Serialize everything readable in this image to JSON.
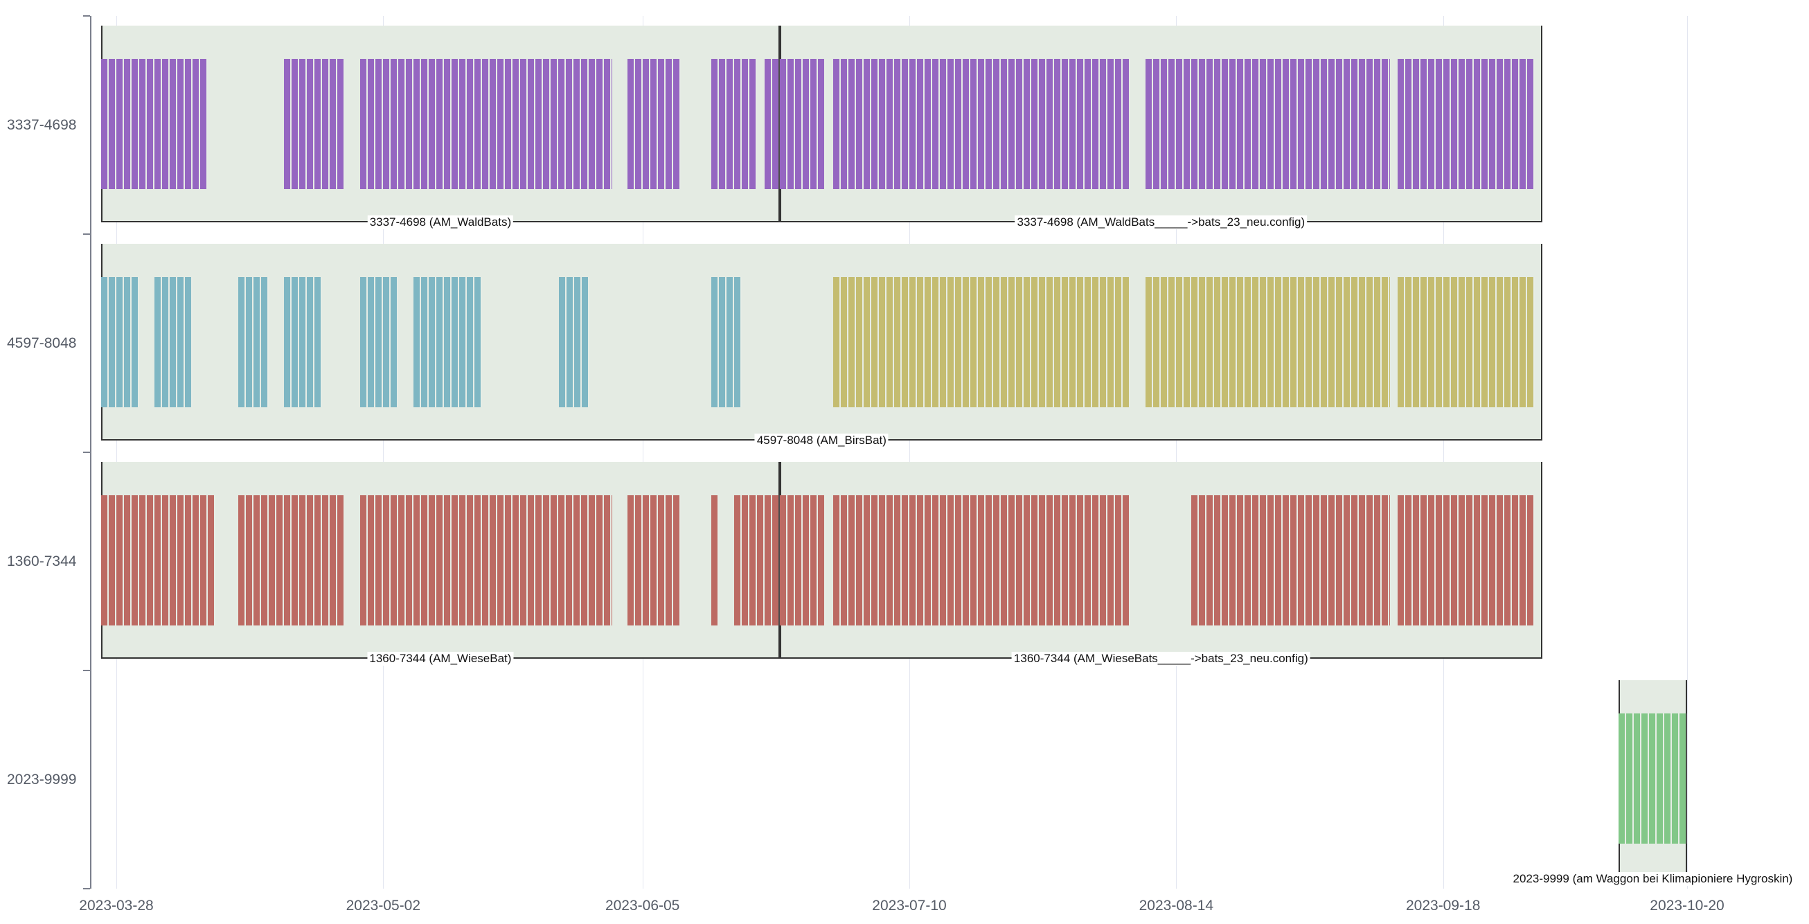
{
  "chart_data": {
    "type": "timeline",
    "title": "",
    "xlabel": "",
    "ylabel": "",
    "x_ticks": [
      "2023-03-28",
      "2023-05-02",
      "2023-06-05",
      "2023-07-10",
      "2023-08-14",
      "2023-09-18",
      "2023-10-20"
    ],
    "xlim": [
      "2023-03-26",
      "2023-10-28"
    ],
    "grid": true,
    "colors": {
      "group_bg": "#e4ebe3",
      "purple": "#9566c1",
      "cyan": "#7eb6c3",
      "olive": "#c4bc70",
      "red": "#bc6a63",
      "green": "#82c788"
    },
    "rows": [
      {
        "label": "3337-4698",
        "groups": [
          {
            "start": "2023-03-26",
            "end": "2023-06-23",
            "label": "3337-4698 (AM_WaldBats)"
          },
          {
            "start": "2023-06-23",
            "end": "2023-10-01",
            "label": "3337-4698 (AM_WaldBats_____->bats_23_neu.config)"
          }
        ],
        "bars": [
          {
            "start": "2023-03-26",
            "end": "2023-04-09",
            "color": "purple"
          },
          {
            "start": "2023-04-19",
            "end": "2023-04-27",
            "color": "purple"
          },
          {
            "start": "2023-04-29",
            "end": "2023-06-01",
            "color": "purple"
          },
          {
            "start": "2023-06-03",
            "end": "2023-06-10",
            "color": "purple"
          },
          {
            "start": "2023-06-14",
            "end": "2023-06-20",
            "color": "purple"
          },
          {
            "start": "2023-06-21",
            "end": "2023-06-29",
            "color": "purple"
          },
          {
            "start": "2023-06-30",
            "end": "2023-08-08",
            "color": "purple"
          },
          {
            "start": "2023-08-10",
            "end": "2023-09-11",
            "color": "purple"
          },
          {
            "start": "2023-09-12",
            "end": "2023-09-30",
            "color": "purple"
          }
        ]
      },
      {
        "label": "4597-8048",
        "groups": [
          {
            "start": "2023-03-26",
            "end": "2023-10-01",
            "label": "4597-8048 (AM_BirsBat)"
          }
        ],
        "bars": [
          {
            "start": "2023-03-26",
            "end": "2023-03-31",
            "color": "cyan"
          },
          {
            "start": "2023-04-02",
            "end": "2023-04-07",
            "color": "cyan"
          },
          {
            "start": "2023-04-13",
            "end": "2023-04-17",
            "color": "cyan"
          },
          {
            "start": "2023-04-19",
            "end": "2023-04-24",
            "color": "cyan"
          },
          {
            "start": "2023-04-29",
            "end": "2023-05-04",
            "color": "cyan"
          },
          {
            "start": "2023-05-06",
            "end": "2023-05-15",
            "color": "cyan"
          },
          {
            "start": "2023-05-25",
            "end": "2023-05-29",
            "color": "cyan"
          },
          {
            "start": "2023-06-14",
            "end": "2023-06-18",
            "color": "cyan"
          },
          {
            "start": "2023-06-30",
            "end": "2023-08-08",
            "color": "olive"
          },
          {
            "start": "2023-08-10",
            "end": "2023-09-11",
            "color": "olive"
          },
          {
            "start": "2023-09-12",
            "end": "2023-09-30",
            "color": "olive"
          }
        ]
      },
      {
        "label": "1360-7344",
        "groups": [
          {
            "start": "2023-03-26",
            "end": "2023-06-23",
            "label": "1360-7344 (AM_WieseBat)"
          },
          {
            "start": "2023-06-23",
            "end": "2023-10-01",
            "label": "1360-7344 (AM_WieseBats_____->bats_23_neu.config)"
          }
        ],
        "bars": [
          {
            "start": "2023-03-26",
            "end": "2023-04-10",
            "color": "red"
          },
          {
            "start": "2023-04-13",
            "end": "2023-04-27",
            "color": "red"
          },
          {
            "start": "2023-04-29",
            "end": "2023-06-01",
            "color": "red"
          },
          {
            "start": "2023-06-03",
            "end": "2023-06-10",
            "color": "red"
          },
          {
            "start": "2023-06-14",
            "end": "2023-06-15",
            "color": "red"
          },
          {
            "start": "2023-06-17",
            "end": "2023-06-29",
            "color": "red"
          },
          {
            "start": "2023-06-30",
            "end": "2023-08-08",
            "color": "red"
          },
          {
            "start": "2023-08-16",
            "end": "2023-09-11",
            "color": "red"
          },
          {
            "start": "2023-09-12",
            "end": "2023-09-30",
            "color": "red"
          }
        ]
      },
      {
        "label": "2023-9999",
        "groups": [
          {
            "start": "2023-10-11",
            "end": "2023-10-20",
            "label": "2023-9999 (am Waggon bei Klimapioniere Hygroskin)"
          }
        ],
        "bars": [
          {
            "start": "2023-10-11",
            "end": "2023-10-20",
            "color": "green"
          }
        ]
      }
    ]
  }
}
